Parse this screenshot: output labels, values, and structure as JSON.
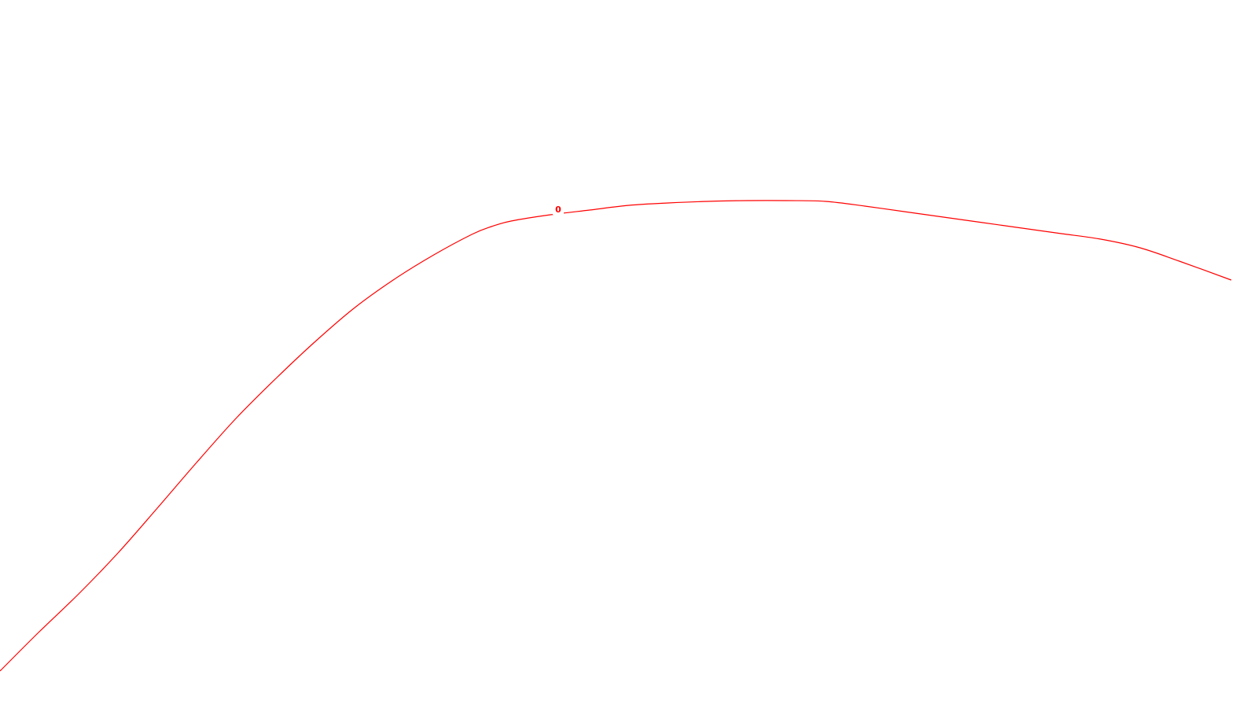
{
  "chart_data": {
    "type": "line",
    "grid": false,
    "legend": false,
    "series": [
      {
        "color": "#ff0000",
        "label_text": "0",
        "x": [
          0,
          50,
          100,
          150,
          200,
          250,
          300,
          350,
          400,
          450,
          500,
          550,
          600,
          625,
          650,
          700,
          750,
          800,
          850,
          900,
          950,
          1000,
          1050,
          1100,
          1150,
          1200,
          1250,
          1300,
          1350,
          1400,
          1450,
          1500,
          1566
        ],
        "y": [
          0,
          50,
          98,
          150,
          207,
          265,
          321,
          371,
          418,
          461,
          497,
          528,
          555,
          565,
          572,
          580,
          586,
          592,
          595,
          597,
          598,
          598,
          597,
          591,
          584,
          577,
          570,
          563,
          556,
          549,
          538,
          521,
          497
        ]
      }
    ]
  }
}
